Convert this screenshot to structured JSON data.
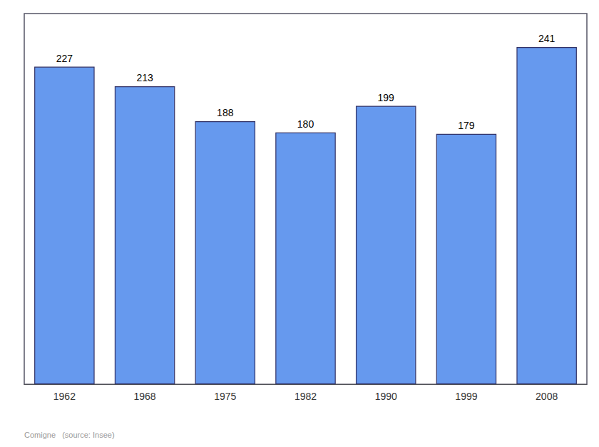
{
  "chart_data": {
    "type": "bar",
    "categories": [
      "1962",
      "1968",
      "1975",
      "1982",
      "1990",
      "1999",
      "2008"
    ],
    "values": [
      227,
      213,
      188,
      180,
      199,
      179,
      241
    ],
    "color": "#6699ee",
    "ylim": [
      0,
      265
    ],
    "grid": false,
    "data_labels": true,
    "tick_labels": "x",
    "annotations": [
      "Comigne   (source: Insee)"
    ]
  }
}
